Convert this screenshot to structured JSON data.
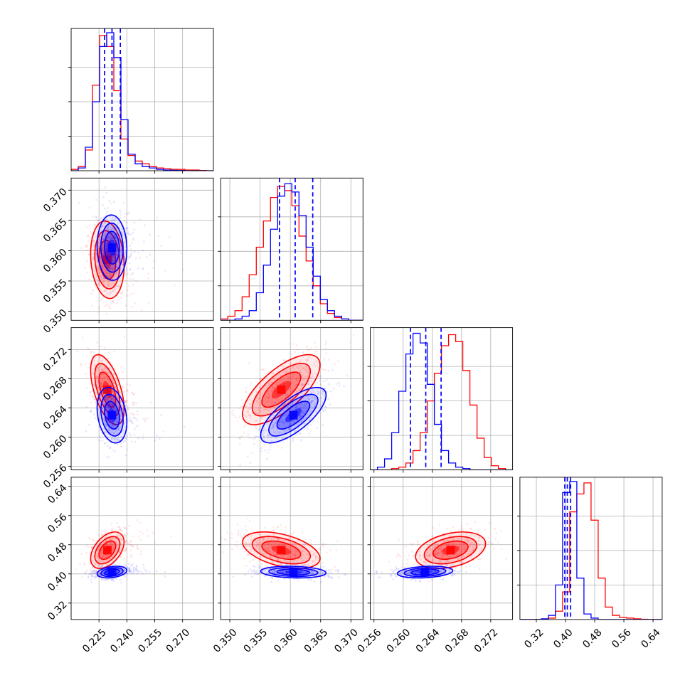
{
  "chart_data": {
    "type": "corner",
    "title": "",
    "grid": true,
    "parameters": [
      {
        "range": [
          0.21,
          0.2866
        ],
        "ticks": [
          "0.225",
          "0.240",
          "0.255",
          "0.270"
        ]
      },
      {
        "range": [
          0.3485,
          0.372
        ],
        "ticks": [
          "0.350",
          "0.355",
          "0.360",
          "0.365",
          "0.370"
        ]
      },
      {
        "range": [
          0.2555,
          0.275
        ],
        "ticks": [
          "0.256",
          "0.260",
          "0.264",
          "0.268",
          "0.272"
        ]
      },
      {
        "range": [
          0.275,
          0.665
        ],
        "ticks": [
          "0.32",
          "0.40",
          "0.48",
          "0.56",
          "0.64"
        ]
      }
    ],
    "series": [
      {
        "name": "red",
        "color": "#ff0000",
        "means": [
          0.2295,
          0.3585,
          0.2665,
          0.465
        ],
        "sds": [
          0.0045,
          0.0032,
          0.0024,
          0.025
        ],
        "correlations": {
          "0-1": -0.15,
          "0-2": -0.55,
          "0-3": 0.45,
          "1-2": 0.7,
          "1-3": -0.45,
          "2-3": 0.35
        },
        "histograms": [
          [
            0.01,
            0.03,
            0.15,
            0.62,
            0.98,
            0.9,
            0.58,
            0.23,
            0.11,
            0.07,
            0.05,
            0.03,
            0.02,
            0.015,
            0.01,
            0.01,
            0.005,
            0.005,
            0.002,
            0.0
          ],
          [
            0.01,
            0.03,
            0.07,
            0.17,
            0.33,
            0.53,
            0.72,
            0.89,
            0.97,
            0.94,
            0.83,
            0.61,
            0.43,
            0.25,
            0.12,
            0.05,
            0.02,
            0.01,
            0.0,
            0.0
          ],
          [
            0.0,
            0.0,
            0.0,
            0.01,
            0.02,
            0.05,
            0.14,
            0.27,
            0.5,
            0.7,
            0.9,
            0.98,
            0.93,
            0.72,
            0.47,
            0.23,
            0.09,
            0.03,
            0.01,
            0.0
          ],
          [
            0.0,
            0.0,
            0.0,
            0.0,
            0.01,
            0.06,
            0.2,
            0.78,
            0.91,
            0.99,
            0.72,
            0.3,
            0.09,
            0.03,
            0.015,
            0.01,
            0.005,
            0.002,
            0.0,
            0.0
          ]
        ]
      },
      {
        "name": "blue",
        "color": "#0000ff",
        "means": [
          0.232,
          0.3605,
          0.263,
          0.405
        ],
        "sds": [
          0.004,
          0.0027,
          0.0019,
          0.008
        ],
        "correlations": {
          "0-1": -0.05,
          "0-2": -0.25,
          "0-3": 0.3,
          "1-2": 0.72,
          "1-3": -0.15,
          "2-3": 0.25
        },
        "histograms": [
          [
            0.0,
            0.02,
            0.17,
            0.5,
            0.9,
            1.0,
            0.82,
            0.37,
            0.12,
            0.05,
            0.03,
            0.02,
            0.01,
            0.005,
            0.003,
            0.002,
            0.0,
            0.0,
            0.0,
            0.0
          ],
          [
            0.0,
            0.0,
            0.01,
            0.03,
            0.07,
            0.2,
            0.4,
            0.66,
            0.9,
            0.99,
            0.93,
            0.76,
            0.53,
            0.32,
            0.15,
            0.07,
            0.03,
            0.01,
            0.0,
            0.0
          ],
          [
            0.0,
            0.02,
            0.08,
            0.27,
            0.57,
            0.84,
            0.99,
            0.92,
            0.62,
            0.33,
            0.14,
            0.05,
            0.02,
            0.01,
            0.0,
            0.0,
            0.0,
            0.0,
            0.0,
            0.0
          ],
          [
            0.0,
            0.0,
            0.0,
            0.005,
            0.03,
            0.25,
            0.92,
            1.0,
            0.3,
            0.04,
            0.01,
            0.0,
            0.0,
            0.0,
            0.0,
            0.0,
            0.0,
            0.0,
            0.0,
            0.0
          ]
        ]
      }
    ],
    "quantile_lines": {
      "color": "#0000ff",
      "style": "dashed",
      "values": [
        [
          0.228,
          0.232,
          0.2365
        ],
        [
          0.3582,
          0.3608,
          0.3637
        ],
        [
          0.261,
          0.2631,
          0.2652
        ],
        [
          0.398,
          0.405,
          0.414
        ]
      ]
    }
  }
}
